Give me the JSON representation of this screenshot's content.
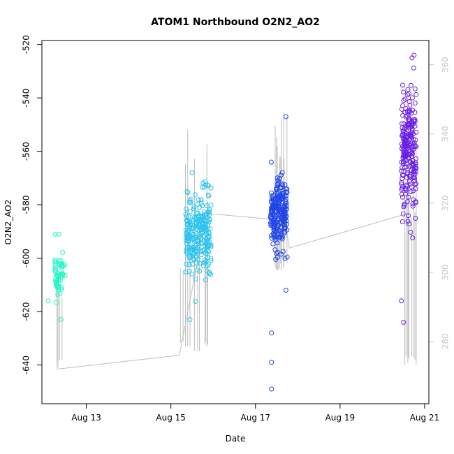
{
  "chart_data": {
    "type": "scatter",
    "title": "ATOM1 Northbound O2N2_AO2",
    "xlabel": "Date",
    "ylabel": "O2N2_AO2",
    "x_ticks": [
      {
        "value": 13,
        "label": "Aug 13"
      },
      {
        "value": 15,
        "label": "Aug 15"
      },
      {
        "value": 17,
        "label": "Aug 17"
      },
      {
        "value": 19,
        "label": "Aug 19"
      },
      {
        "value": 21,
        "label": "Aug 21"
      }
    ],
    "y_ticks": [
      -520,
      -540,
      -560,
      -580,
      -600,
      -620,
      -640
    ],
    "y2_ticks": [
      280,
      300,
      320,
      340,
      360
    ],
    "xlim": [
      11.95,
      21.1
    ],
    "ylim": [
      -654.5,
      -518.5
    ],
    "y2lim": [
      262,
      367
    ],
    "y2_color": "#c8c8c8",
    "grid": false,
    "legend": "none",
    "segment_color": "#bebebe",
    "clusters": [
      {
        "x_range": [
          12.25,
          12.5
        ],
        "y_center": -606,
        "y_spread": 7,
        "color": "#22f5c5",
        "count": 55,
        "seed": 11
      },
      {
        "x_range": [
          15.35,
          15.95
        ],
        "y_center": -590,
        "y_spread": 12,
        "color": "#2bc3ee",
        "count": 260,
        "seed": 23
      },
      {
        "x_range": [
          17.35,
          17.75
        ],
        "y_center": -584,
        "y_spread": 11,
        "color": "#1f45e8",
        "count": 230,
        "seed": 37
      },
      {
        "x_range": [
          20.45,
          20.8
        ],
        "y_center": -560,
        "y_spread": 19,
        "color": "#6a1fe8",
        "count": 240,
        "seed": 53
      }
    ],
    "outliers": [
      {
        "x": 12.1,
        "y": -616,
        "color": "#22f5c5"
      },
      {
        "x": 12.35,
        "y": -591,
        "color": "#22f5c5"
      },
      {
        "x": 12.4,
        "y": -623,
        "color": "#22f5c5"
      },
      {
        "x": 15.45,
        "y": -623,
        "color": "#2bc3ee"
      },
      {
        "x": 15.5,
        "y": -568,
        "color": "#2bc3ee"
      },
      {
        "x": 17.38,
        "y": -628,
        "color": "#1f45e8"
      },
      {
        "x": 17.38,
        "y": -639,
        "color": "#1f45e8"
      },
      {
        "x": 17.38,
        "y": -649,
        "color": "#1f45e8"
      },
      {
        "x": 17.72,
        "y": -547,
        "color": "#1f45e8"
      },
      {
        "x": 17.72,
        "y": -612,
        "color": "#1f45e8"
      },
      {
        "x": 20.45,
        "y": -616,
        "color": "#6a1fe8"
      },
      {
        "x": 20.5,
        "y": -624,
        "color": "#6a1fe8"
      },
      {
        "x": 20.7,
        "y": -525,
        "color": "#6a1fe8"
      },
      {
        "x": 20.75,
        "y": -524,
        "color": "#6a1fe8"
      }
    ],
    "trend_line": [
      {
        "x": 12.3,
        "y2": 272
      },
      {
        "x": 15.2,
        "y2": 276
      },
      {
        "x": 15.85,
        "y2": 317
      },
      {
        "x": 17.7,
        "y2": 315
      },
      {
        "x": 17.8,
        "y2": 307
      },
      {
        "x": 20.6,
        "y2": 317
      }
    ],
    "bar_groups": [
      {
        "x_range": [
          12.25,
          12.45
        ],
        "y2_low": 272,
        "y2_high": [
          291,
          301
        ],
        "count": 6
      },
      {
        "x_range": [
          15.2,
          15.9
        ],
        "y2_low": 277,
        "y2_high": [
          300,
          342
        ],
        "count": 12
      },
      {
        "x_range": [
          17.4,
          17.8
        ],
        "y2_low": 300,
        "y2_high": [
          325,
          347
        ],
        "count": 12
      },
      {
        "x_range": [
          20.5,
          20.85
        ],
        "y2_low": 273,
        "y2_high": [
          300,
          340
        ],
        "count": 12
      }
    ]
  }
}
